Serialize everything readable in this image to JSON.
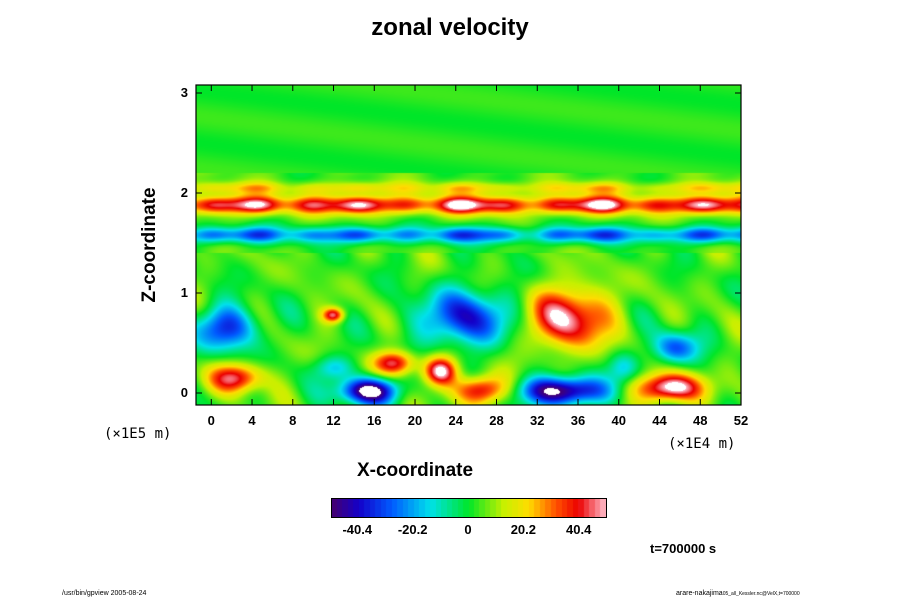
{
  "chart_data": {
    "type": "heatmap",
    "title": "zonal velocity",
    "xlabel": "X-coordinate",
    "ylabel": "Z-coordinate",
    "x_scale_label": "(×1E4 m)",
    "y_scale_label": "(×1E5 m)",
    "xlim": [
      -1.5,
      52
    ],
    "ylim": [
      -0.12,
      3.08
    ],
    "x_ticks": [
      "0",
      "4",
      "8",
      "12",
      "16",
      "20",
      "24",
      "28",
      "32",
      "36",
      "40",
      "44",
      "48",
      "52"
    ],
    "x_tick_values": [
      0,
      4,
      8,
      12,
      16,
      20,
      24,
      28,
      32,
      36,
      40,
      44,
      48,
      52
    ],
    "y_ticks": [
      "0",
      "1",
      "2",
      "3"
    ],
    "y_tick_values": [
      0,
      1,
      2,
      3
    ],
    "colorbar": {
      "min": -50,
      "max": 50,
      "ticks": [
        "-40.4",
        "-20.2",
        "0",
        "20.2",
        "40.4"
      ],
      "tick_values": [
        -40.4,
        -20.2,
        0,
        20.2,
        40.4
      ],
      "colormap": "rainbow (purple-blue-cyan-green-yellow-red-pink)",
      "out_of_range_color": "#ffffff"
    },
    "features": [
      {
        "kind": "band",
        "z": 1.88,
        "value": 38,
        "thickness": 0.09
      },
      {
        "kind": "band",
        "z": 1.58,
        "value": -28,
        "thickness": 0.08
      },
      {
        "kind": "band",
        "z": 2.05,
        "value": 14,
        "thickness": 0.06
      },
      {
        "kind": "blob",
        "x": 1.5,
        "z": 0.65,
        "value": -38,
        "rx": 3.0,
        "rz": 0.22
      },
      {
        "kind": "blob",
        "x": 25,
        "z": 0.75,
        "value": -40,
        "rx": 4.5,
        "rz": 0.28
      },
      {
        "kind": "blob",
        "x": 35,
        "z": 0.75,
        "value": 45,
        "rx": 4.0,
        "rz": 0.3
      },
      {
        "kind": "blob",
        "x": 45.5,
        "z": 0.45,
        "value": -34,
        "rx": 2.2,
        "rz": 0.16
      },
      {
        "kind": "blob",
        "x": 2.5,
        "z": 0.15,
        "value": 40,
        "rx": 2.5,
        "rz": 0.14
      },
      {
        "kind": "blob",
        "x": 15.5,
        "z": 0.02,
        "value": -60,
        "rx": 2.8,
        "rz": 0.13
      },
      {
        "kind": "blob",
        "x": 18,
        "z": 0.3,
        "value": 42,
        "rx": 2.0,
        "rz": 0.12
      },
      {
        "kind": "blob",
        "x": 22.5,
        "z": 0.22,
        "value": 48,
        "rx": 1.6,
        "rz": 0.14
      },
      {
        "kind": "blob",
        "x": 26.5,
        "z": 0.03,
        "value": 42,
        "rx": 2.5,
        "rz": 0.14
      },
      {
        "kind": "blob",
        "x": 34.5,
        "z": 0.02,
        "value": -60,
        "rx": 4.0,
        "rz": 0.14
      },
      {
        "kind": "blob",
        "x": 45,
        "z": 0.05,
        "value": 55,
        "rx": 3.0,
        "rz": 0.14
      },
      {
        "kind": "blob",
        "x": 12,
        "z": 0.78,
        "value": 40,
        "rx": 1.0,
        "rz": 0.07
      },
      {
        "kind": "blob",
        "x": 12,
        "z": 0.25,
        "value": -20,
        "rx": 2.0,
        "rz": 0.12
      },
      {
        "kind": "blob",
        "x": 40.5,
        "z": 0.25,
        "value": -18,
        "rx": 1.5,
        "rz": 0.15
      }
    ]
  },
  "time_label": "t=700000 s",
  "footer": {
    "left": "/usr/bin/gpview 2005-08-24",
    "right": "arare-nakajima",
    "right_sub": "05_all_Kessler.nc@VelX,t=700000"
  }
}
